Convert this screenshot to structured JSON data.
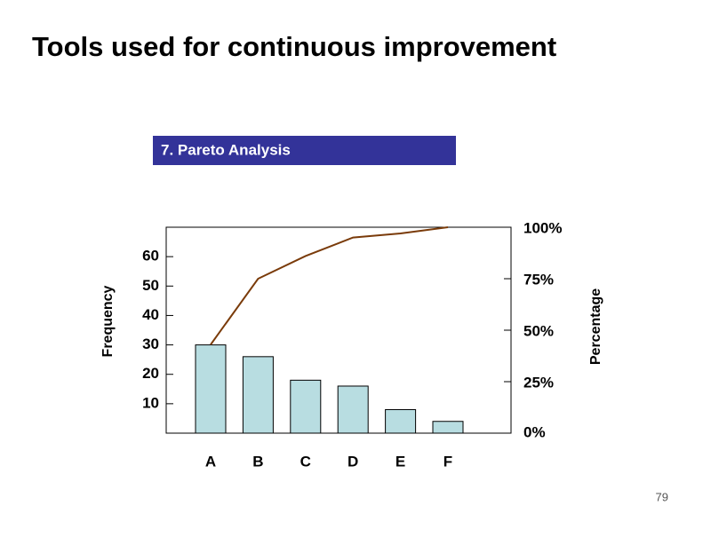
{
  "slide_title": "Tools used for continuous improvement",
  "section_label": "7. Pareto Analysis",
  "page_number": "79",
  "chart_data": {
    "type": "pareto",
    "categories": [
      "A",
      "B",
      "C",
      "D",
      "E",
      "F"
    ],
    "y_label": "Frequency",
    "y2_label": "Percentage",
    "ylim": [
      0,
      70
    ],
    "yticks": [
      10,
      20,
      30,
      40,
      50,
      60
    ],
    "y2lim": [
      0,
      100
    ],
    "y2ticks": [
      {
        "value": 0,
        "label": "0%"
      },
      {
        "value": 25,
        "label": "25%"
      },
      {
        "value": 50,
        "label": "50%"
      },
      {
        "value": 75,
        "label": "75%"
      },
      {
        "value": 100,
        "label": "100%"
      }
    ],
    "series": [
      {
        "type": "bar",
        "color": "#b8dde1",
        "values": [
          30,
          26,
          18,
          16,
          8,
          4
        ]
      },
      {
        "type": "line",
        "axis": "y2",
        "color": "#7a3b0a",
        "values": [
          43,
          75,
          86,
          95,
          97,
          100
        ]
      }
    ]
  }
}
